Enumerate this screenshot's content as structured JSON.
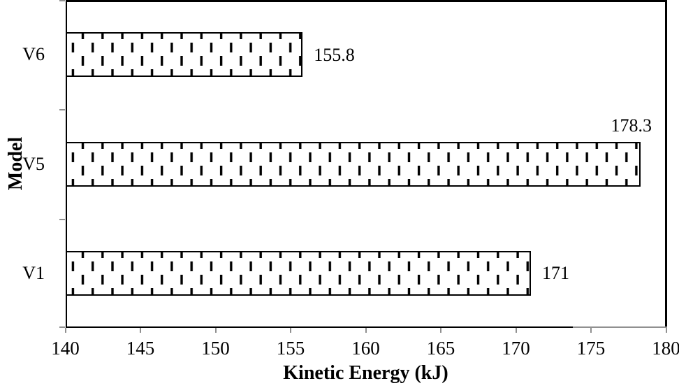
{
  "chart_data": {
    "type": "bar",
    "orientation": "horizontal",
    "title": "",
    "xlabel": "Kinetic Energy (kJ)",
    "ylabel": "Model",
    "categories": [
      "V6",
      "V5",
      "V1"
    ],
    "series": [
      {
        "name": "Kinetic Energy (kJ)",
        "values": [
          155.8,
          178.3,
          171
        ]
      }
    ],
    "value_labels": [
      "155.8",
      "178.3",
      "171"
    ],
    "xlim": [
      140,
      180
    ],
    "x_ticks": [
      140,
      145,
      150,
      155,
      160,
      165,
      170,
      175,
      180
    ],
    "x_tick_step": 5,
    "grid": false,
    "legend": "none",
    "bar_fill_style": "white fill with black dashed-vertical pattern, solid black border",
    "x_axis_black_until": 173.8,
    "colors": {
      "background": "#ffffff",
      "text": "#000000",
      "bar_border": "#000000",
      "pattern_dash": "#000000",
      "axis_line": "#000000",
      "tick_mark_gray": "#909090"
    }
  }
}
